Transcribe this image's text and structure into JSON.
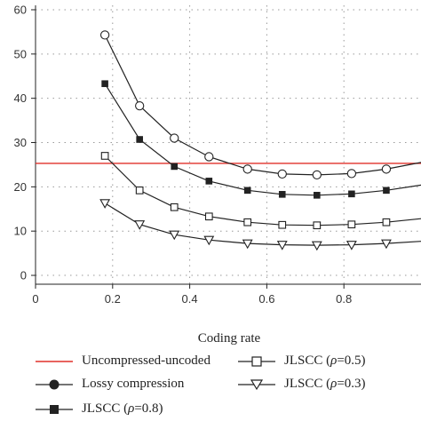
{
  "chart_data": {
    "type": "line",
    "xlabel": "Coding rate",
    "ylabel": "",
    "xlim": [
      0,
      1.0
    ],
    "ylim": [
      -2,
      61
    ],
    "xticks": [
      0,
      0.2,
      0.4,
      0.6,
      0.8
    ],
    "yticks": [
      0,
      10,
      20,
      30,
      40,
      50,
      60
    ],
    "grid": true,
    "legend_position": "bottom",
    "reference_lines": [
      {
        "name": "Uncompressed-uncoded",
        "y": 25.3,
        "color": "#e0302a"
      }
    ],
    "series": [
      {
        "name": "Lossy compression",
        "marker": "circle-open",
        "x": [
          0.18,
          0.27,
          0.36,
          0.45,
          0.55,
          0.64,
          0.73,
          0.82,
          0.91,
          1.0
        ],
        "y": [
          54.3,
          38.3,
          31.0,
          26.8,
          24.0,
          22.9,
          22.7,
          23.0,
          24.0,
          25.5
        ]
      },
      {
        "name": "JLSCC (ρ=0.8)",
        "marker": "square-filled",
        "x": [
          0.18,
          0.27,
          0.36,
          0.45,
          0.55,
          0.64,
          0.73,
          0.82,
          0.91,
          1.0
        ],
        "y": [
          43.3,
          30.7,
          24.6,
          21.3,
          19.2,
          18.3,
          18.1,
          18.4,
          19.2,
          20.4
        ]
      },
      {
        "name": "JLSCC (ρ=0.5)",
        "marker": "square-open",
        "x": [
          0.18,
          0.27,
          0.36,
          0.45,
          0.55,
          0.64,
          0.73,
          0.82,
          0.91,
          1.0
        ],
        "y": [
          27.0,
          19.2,
          15.4,
          13.3,
          12.0,
          11.4,
          11.3,
          11.5,
          12.0,
          12.8
        ]
      },
      {
        "name": "JLSCC (ρ=0.3)",
        "marker": "triangle-down-open",
        "x": [
          0.18,
          0.27,
          0.36,
          0.45,
          0.55,
          0.64,
          0.73,
          0.82,
          0.91,
          1.0
        ],
        "y": [
          16.3,
          11.5,
          9.2,
          8.0,
          7.2,
          6.9,
          6.8,
          6.9,
          7.2,
          7.7
        ]
      }
    ]
  },
  "legend": {
    "items": [
      {
        "label": "Uncompressed-uncoded",
        "symbol": "line-red"
      },
      {
        "label": "JLSCC (",
        "rho": "ρ",
        "suffix": "=0.5)",
        "symbol": "square-open"
      },
      {
        "label": "Lossy compression",
        "symbol": "circle-filled"
      },
      {
        "label": "JLSCC (",
        "rho": "ρ",
        "suffix": "=0.3)",
        "symbol": "triangle-down-open"
      },
      {
        "label": "JLSCC (",
        "rho": "ρ",
        "suffix": "=0.8)",
        "symbol": "square-filled"
      }
    ]
  }
}
